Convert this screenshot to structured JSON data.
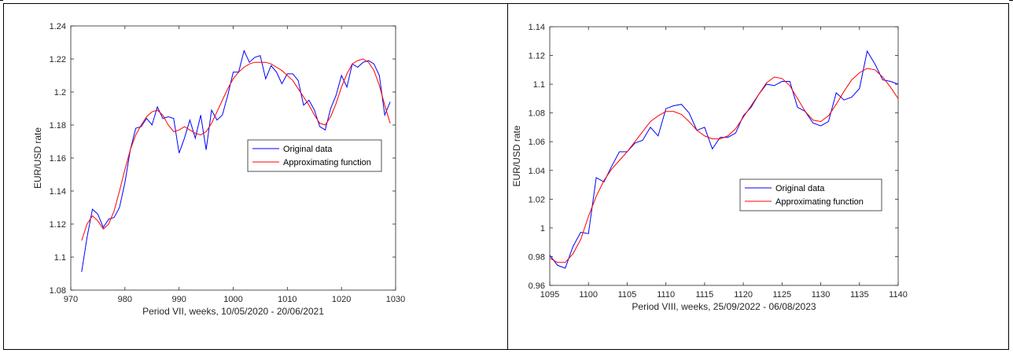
{
  "charts": [
    {
      "type": "line",
      "xlabel": "Period VII, weeks, 10/05/2020 - 20/06/2021",
      "ylabel": "EUR/USD rate",
      "xlim": [
        970,
        1030
      ],
      "ylim": [
        1.08,
        1.24
      ],
      "xticks": [
        970,
        980,
        990,
        1000,
        1010,
        1020,
        1030
      ],
      "yticks": [
        1.08,
        1.1,
        1.12,
        1.14,
        1.16,
        1.18,
        1.2,
        1.22,
        1.24
      ],
      "legend_position": "center-right",
      "series": [
        {
          "name": "Original data",
          "color": "#0000ff",
          "x": [
            972,
            973,
            974,
            975,
            976,
            977,
            978,
            979,
            980,
            981,
            982,
            983,
            984,
            985,
            986,
            987,
            988,
            989,
            990,
            991,
            992,
            993,
            994,
            995,
            996,
            997,
            998,
            999,
            1000,
            1001,
            1002,
            1003,
            1004,
            1005,
            1006,
            1007,
            1008,
            1009,
            1010,
            1011,
            1012,
            1013,
            1014,
            1015,
            1016,
            1017,
            1018,
            1019,
            1020,
            1021,
            1022,
            1023,
            1024,
            1025,
            1026,
            1027,
            1028,
            1029
          ],
          "y": [
            1.091,
            1.112,
            1.129,
            1.126,
            1.118,
            1.123,
            1.124,
            1.13,
            1.145,
            1.165,
            1.178,
            1.179,
            1.184,
            1.18,
            1.191,
            1.184,
            1.185,
            1.184,
            1.163,
            1.172,
            1.183,
            1.172,
            1.186,
            1.165,
            1.189,
            1.183,
            1.186,
            1.198,
            1.212,
            1.212,
            1.225,
            1.218,
            1.221,
            1.222,
            1.208,
            1.216,
            1.212,
            1.205,
            1.211,
            1.211,
            1.207,
            1.192,
            1.195,
            1.189,
            1.179,
            1.177,
            1.19,
            1.198,
            1.21,
            1.203,
            1.217,
            1.215,
            1.218,
            1.219,
            1.217,
            1.21,
            1.186,
            1.194
          ]
        },
        {
          "name": "Approximating function",
          "color": "#ff0000",
          "x": [
            972,
            973,
            974,
            975,
            976,
            977,
            978,
            979,
            980,
            981,
            982,
            983,
            984,
            985,
            986,
            987,
            988,
            989,
            990,
            991,
            992,
            993,
            994,
            995,
            996,
            997,
            998,
            999,
            1000,
            1001,
            1002,
            1003,
            1004,
            1005,
            1006,
            1007,
            1008,
            1009,
            1010,
            1011,
            1012,
            1013,
            1014,
            1015,
            1016,
            1017,
            1018,
            1019,
            1020,
            1021,
            1022,
            1023,
            1024,
            1025,
            1026,
            1027,
            1028,
            1029
          ],
          "y": [
            1.11,
            1.12,
            1.125,
            1.122,
            1.117,
            1.12,
            1.128,
            1.14,
            1.153,
            1.165,
            1.174,
            1.18,
            1.185,
            1.188,
            1.189,
            1.186,
            1.18,
            1.176,
            1.177,
            1.179,
            1.177,
            1.175,
            1.174,
            1.176,
            1.181,
            1.188,
            1.195,
            1.202,
            1.208,
            1.212,
            1.215,
            1.217,
            1.218,
            1.218,
            1.218,
            1.217,
            1.215,
            1.213,
            1.21,
            1.207,
            1.202,
            1.197,
            1.192,
            1.186,
            1.181,
            1.18,
            1.185,
            1.193,
            1.203,
            1.211,
            1.217,
            1.219,
            1.22,
            1.218,
            1.213,
            1.204,
            1.192,
            1.181
          ]
        }
      ]
    },
    {
      "type": "line",
      "xlabel": "Period VIII, weeks, 25/09/2022 - 06/08/2023",
      "ylabel": "EUR/USD rate",
      "xlim": [
        1095,
        1140
      ],
      "ylim": [
        0.96,
        1.14
      ],
      "xticks": [
        1095,
        1100,
        1105,
        1110,
        1115,
        1120,
        1125,
        1130,
        1135,
        1140
      ],
      "yticks": [
        0.96,
        0.98,
        1,
        1.02,
        1.04,
        1.06,
        1.08,
        1.1,
        1.12,
        1.14
      ],
      "legend_position": "lower-right",
      "series": [
        {
          "name": "Original data",
          "color": "#0000ff",
          "x": [
            1095,
            1096,
            1097,
            1098,
            1099,
            1100,
            1101,
            1102,
            1103,
            1104,
            1105,
            1106,
            1107,
            1108,
            1109,
            1110,
            1111,
            1112,
            1113,
            1114,
            1115,
            1116,
            1117,
            1118,
            1119,
            1120,
            1121,
            1122,
            1123,
            1124,
            1125,
            1126,
            1127,
            1128,
            1129,
            1130,
            1131,
            1132,
            1133,
            1134,
            1135,
            1136,
            1137,
            1138,
            1139,
            1140
          ],
          "y": [
            0.981,
            0.974,
            0.972,
            0.987,
            0.997,
            0.996,
            1.035,
            1.032,
            1.043,
            1.053,
            1.053,
            1.059,
            1.061,
            1.07,
            1.064,
            1.083,
            1.085,
            1.086,
            1.08,
            1.068,
            1.07,
            1.055,
            1.063,
            1.063,
            1.066,
            1.078,
            1.084,
            1.093,
            1.1,
            1.099,
            1.102,
            1.102,
            1.084,
            1.081,
            1.073,
            1.071,
            1.074,
            1.094,
            1.089,
            1.091,
            1.097,
            1.123,
            1.114,
            1.103,
            1.102,
            1.1
          ]
        },
        {
          "name": "Approximating function",
          "color": "#ff0000",
          "x": [
            1095,
            1096,
            1097,
            1098,
            1099,
            1100,
            1101,
            1102,
            1103,
            1104,
            1105,
            1106,
            1107,
            1108,
            1109,
            1110,
            1111,
            1112,
            1113,
            1114,
            1115,
            1116,
            1117,
            1118,
            1119,
            1120,
            1121,
            1122,
            1123,
            1124,
            1125,
            1126,
            1127,
            1128,
            1129,
            1130,
            1131,
            1132,
            1133,
            1134,
            1135,
            1136,
            1137,
            1138,
            1139,
            1140
          ],
          "y": [
            0.979,
            0.976,
            0.976,
            0.982,
            0.992,
            1.008,
            1.022,
            1.033,
            1.041,
            1.047,
            1.053,
            1.06,
            1.067,
            1.074,
            1.078,
            1.081,
            1.081,
            1.079,
            1.074,
            1.068,
            1.064,
            1.062,
            1.062,
            1.064,
            1.069,
            1.077,
            1.085,
            1.093,
            1.101,
            1.105,
            1.104,
            1.099,
            1.09,
            1.081,
            1.075,
            1.074,
            1.078,
            1.086,
            1.095,
            1.103,
            1.108,
            1.111,
            1.11,
            1.105,
            1.098,
            1.09
          ]
        }
      ]
    }
  ]
}
